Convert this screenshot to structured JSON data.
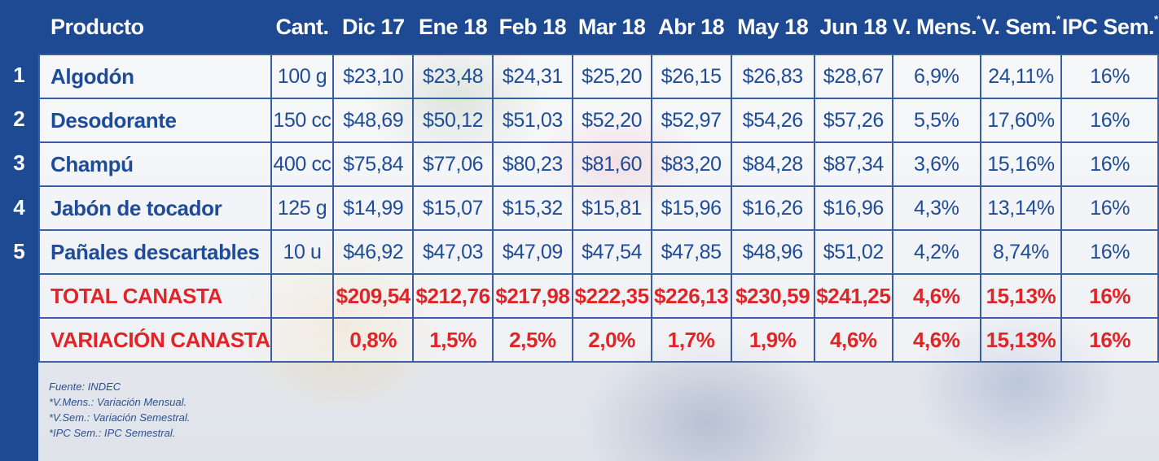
{
  "header": {
    "columns": [
      "Producto",
      "Cant.",
      "Dic 17",
      "Ene 18",
      "Feb 18",
      "Mar 18",
      "Abr 18",
      "May 18",
      "Jun 18",
      "V. Mens.",
      "V. Sem.",
      "IPC Sem."
    ],
    "asterisk": "*"
  },
  "rows": [
    {
      "num": "1",
      "producto": "Algodón",
      "cant": "100 g",
      "values": [
        "$23,10",
        "$23,48",
        "$24,31",
        "$25,20",
        "$26,15",
        "$26,83",
        "$28,67"
      ],
      "v_mens": "6,9%",
      "v_sem": "24,11%",
      "ipc_sem": "16%"
    },
    {
      "num": "2",
      "producto": "Desodorante",
      "cant": "150 cc",
      "values": [
        "$48,69",
        "$50,12",
        "$51,03",
        "$52,20",
        "$52,97",
        "$54,26",
        "$57,26"
      ],
      "v_mens": "5,5%",
      "v_sem": "17,60%",
      "ipc_sem": "16%"
    },
    {
      "num": "3",
      "producto": "Champú",
      "cant": "400 cc",
      "values": [
        "$75,84",
        "$77,06",
        "$80,23",
        "$81,60",
        "$83,20",
        "$84,28",
        "$87,34"
      ],
      "v_mens": "3,6%",
      "v_sem": "15,16%",
      "ipc_sem": "16%"
    },
    {
      "num": "4",
      "producto": "Jabón de tocador",
      "cant": "125 g",
      "values": [
        "$14,99",
        "$15,07",
        "$15,32",
        "$15,81",
        "$15,96",
        "$16,26",
        "$16,96"
      ],
      "v_mens": "4,3%",
      "v_sem": "13,14%",
      "ipc_sem": "16%"
    },
    {
      "num": "5",
      "producto": "Pañales descartables",
      "cant": "10 u",
      "values": [
        "$46,92",
        "$47,03",
        "$47,09",
        "$47,54",
        "$47,85",
        "$48,96",
        "$51,02"
      ],
      "v_mens": "4,2%",
      "v_sem": "8,74%",
      "ipc_sem": "16%"
    }
  ],
  "total": {
    "label": "TOTAL CANASTA",
    "cant": "",
    "values": [
      "$209,54",
      "$212,76",
      "$217,98",
      "$222,35",
      "$226,13",
      "$230,59",
      "$241,25"
    ],
    "v_mens": "4,6%",
    "v_sem": "15,13%",
    "ipc_sem": "16%"
  },
  "variacion": {
    "label": "VARIACIÓN CANASTA",
    "cant": "",
    "values": [
      "0,8%",
      "1,5%",
      "2,5%",
      "2,0%",
      "1,7%",
      "1,9%",
      "4,6%"
    ],
    "v_mens": "4,6%",
    "v_sem": "15,13%",
    "ipc_sem": "16%"
  },
  "notes": [
    "Fuente: INDEC",
    "*V.Mens.: Variación Mensual.",
    "*V.Sem.: Variación Semestral.",
    "*IPC Sem.: IPC Semestral."
  ],
  "colors": {
    "blue": "#1d4a93",
    "red": "#e02428",
    "text_blue": "#1f4c98"
  }
}
